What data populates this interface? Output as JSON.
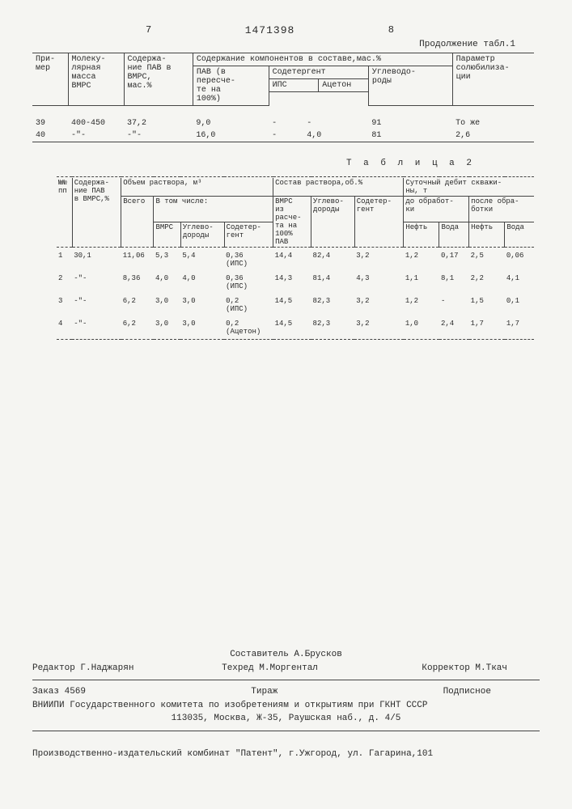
{
  "header": {
    "leftPage": "7",
    "docNumber": "1471398",
    "rightPage": "8",
    "continuation": "Продолжение табл.1"
  },
  "table1": {
    "headers": {
      "primer": "При-\nмер",
      "molMass": "Молеку-\nлярная\nмасса\nВМРС",
      "pavContent": "Содержа-\nние ПАВ в\nВМРС,\nмас.%",
      "compHeader": "Содержание компонентов в составе,мас.%",
      "pav": "ПАВ (в\nпересче-\nте на\n100%)",
      "sodet": "Содетергент",
      "ips": "ИПС",
      "aceton": "Ацетон",
      "uglev": "Углеводо-\nроды",
      "param": "Параметр\nсолюбилиза-\nции"
    },
    "rows": [
      {
        "n": "39",
        "mm": "400-450",
        "pav": "37,2",
        "pavp": "9,0",
        "ips": "-",
        "ace": "-",
        "ug": "91",
        "par": "То же"
      },
      {
        "n": "40",
        "mm": "-\"-",
        "pav": "-\"-",
        "pavp": "16,0",
        "ips": "-",
        "ace": "4,0",
        "ug": "81",
        "par": "2,6"
      }
    ]
  },
  "table2": {
    "title": "Т а б л и ц а  2",
    "headers": {
      "nn": "№№\nпп",
      "pavCont": "Содержа-\nние ПАВ\nв ВМРС,%",
      "volHeader": "Объем раствора, м³",
      "vsego": "Всего",
      "vtom": "В том числе:",
      "vmrs": "ВМРС",
      "uglev": "Углево-\nдороды",
      "sodet": "Содетер-\nгент",
      "compHeader": "Состав раствора,об.%",
      "vmrsCalc": "ВМРС\nиз\nрасче-\nта на\n100%\nПАВ",
      "uglev2": "Углево-\nдороды",
      "sodet2": "Содетер-\nгент",
      "debitHeader": "Суточный дебит скважи-\nны, т",
      "before": "до обработ-\nки",
      "after": "после обра-\nботки",
      "neft": "Нефть",
      "voda": "Вода"
    },
    "rows": [
      {
        "n": "1",
        "pav": "30,1",
        "vs": "11,06",
        "vm": "5,3",
        "ug": "5,4",
        "sd": "0,36\n(ИПС)",
        "vmc": "14,4",
        "ug2": "82,4",
        "sd2": "3,2",
        "bn": "1,2",
        "bv": "0,17",
        "an": "2,5",
        "av": "0,06"
      },
      {
        "n": "2",
        "pav": "-\"-",
        "vs": "8,36",
        "vm": "4,0",
        "ug": "4,0",
        "sd": "0,36\n(ИПС)",
        "vmc": "14,3",
        "ug2": "81,4",
        "sd2": "4,3",
        "bn": "1,1",
        "bv": "8,1",
        "an": "2,2",
        "av": "4,1"
      },
      {
        "n": "3",
        "pav": "-\"-",
        "vs": "6,2",
        "vm": "3,0",
        "ug": "3,0",
        "sd": "0,2\n(ИПС)",
        "vmc": "14,5",
        "ug2": "82,3",
        "sd2": "3,2",
        "bn": "1,2",
        "bv": "-",
        "an": "1,5",
        "av": "0,1"
      },
      {
        "n": "4",
        "pav": "-\"-",
        "vs": "6,2",
        "vm": "3,0",
        "ug": "3,0",
        "sd": "0,2\n(Ацетон)",
        "vmc": "14,5",
        "ug2": "82,3",
        "sd2": "3,2",
        "bn": "1,0",
        "bv": "2,4",
        "an": "1,7",
        "av": "1,7"
      }
    ]
  },
  "footer": {
    "compiler": "Составитель А.Брусков",
    "editor": "Редактор Г.Наджарян",
    "techred": "Техред М.Моргентал",
    "corrector": "Корректор М.Ткач",
    "order": "Заказ 4569",
    "tirazh": "Тираж",
    "signed": "Подписное",
    "org": "ВНИИПИ Государственного комитета по изобретениям и открытиям при ГКНТ СССР",
    "addr": "113035, Москва, Ж-35, Раушская наб., д. 4/5",
    "publisher": "Производственно-издательский комбинат \"Патент\", г.Ужгород, ул. Гагарина,101"
  }
}
